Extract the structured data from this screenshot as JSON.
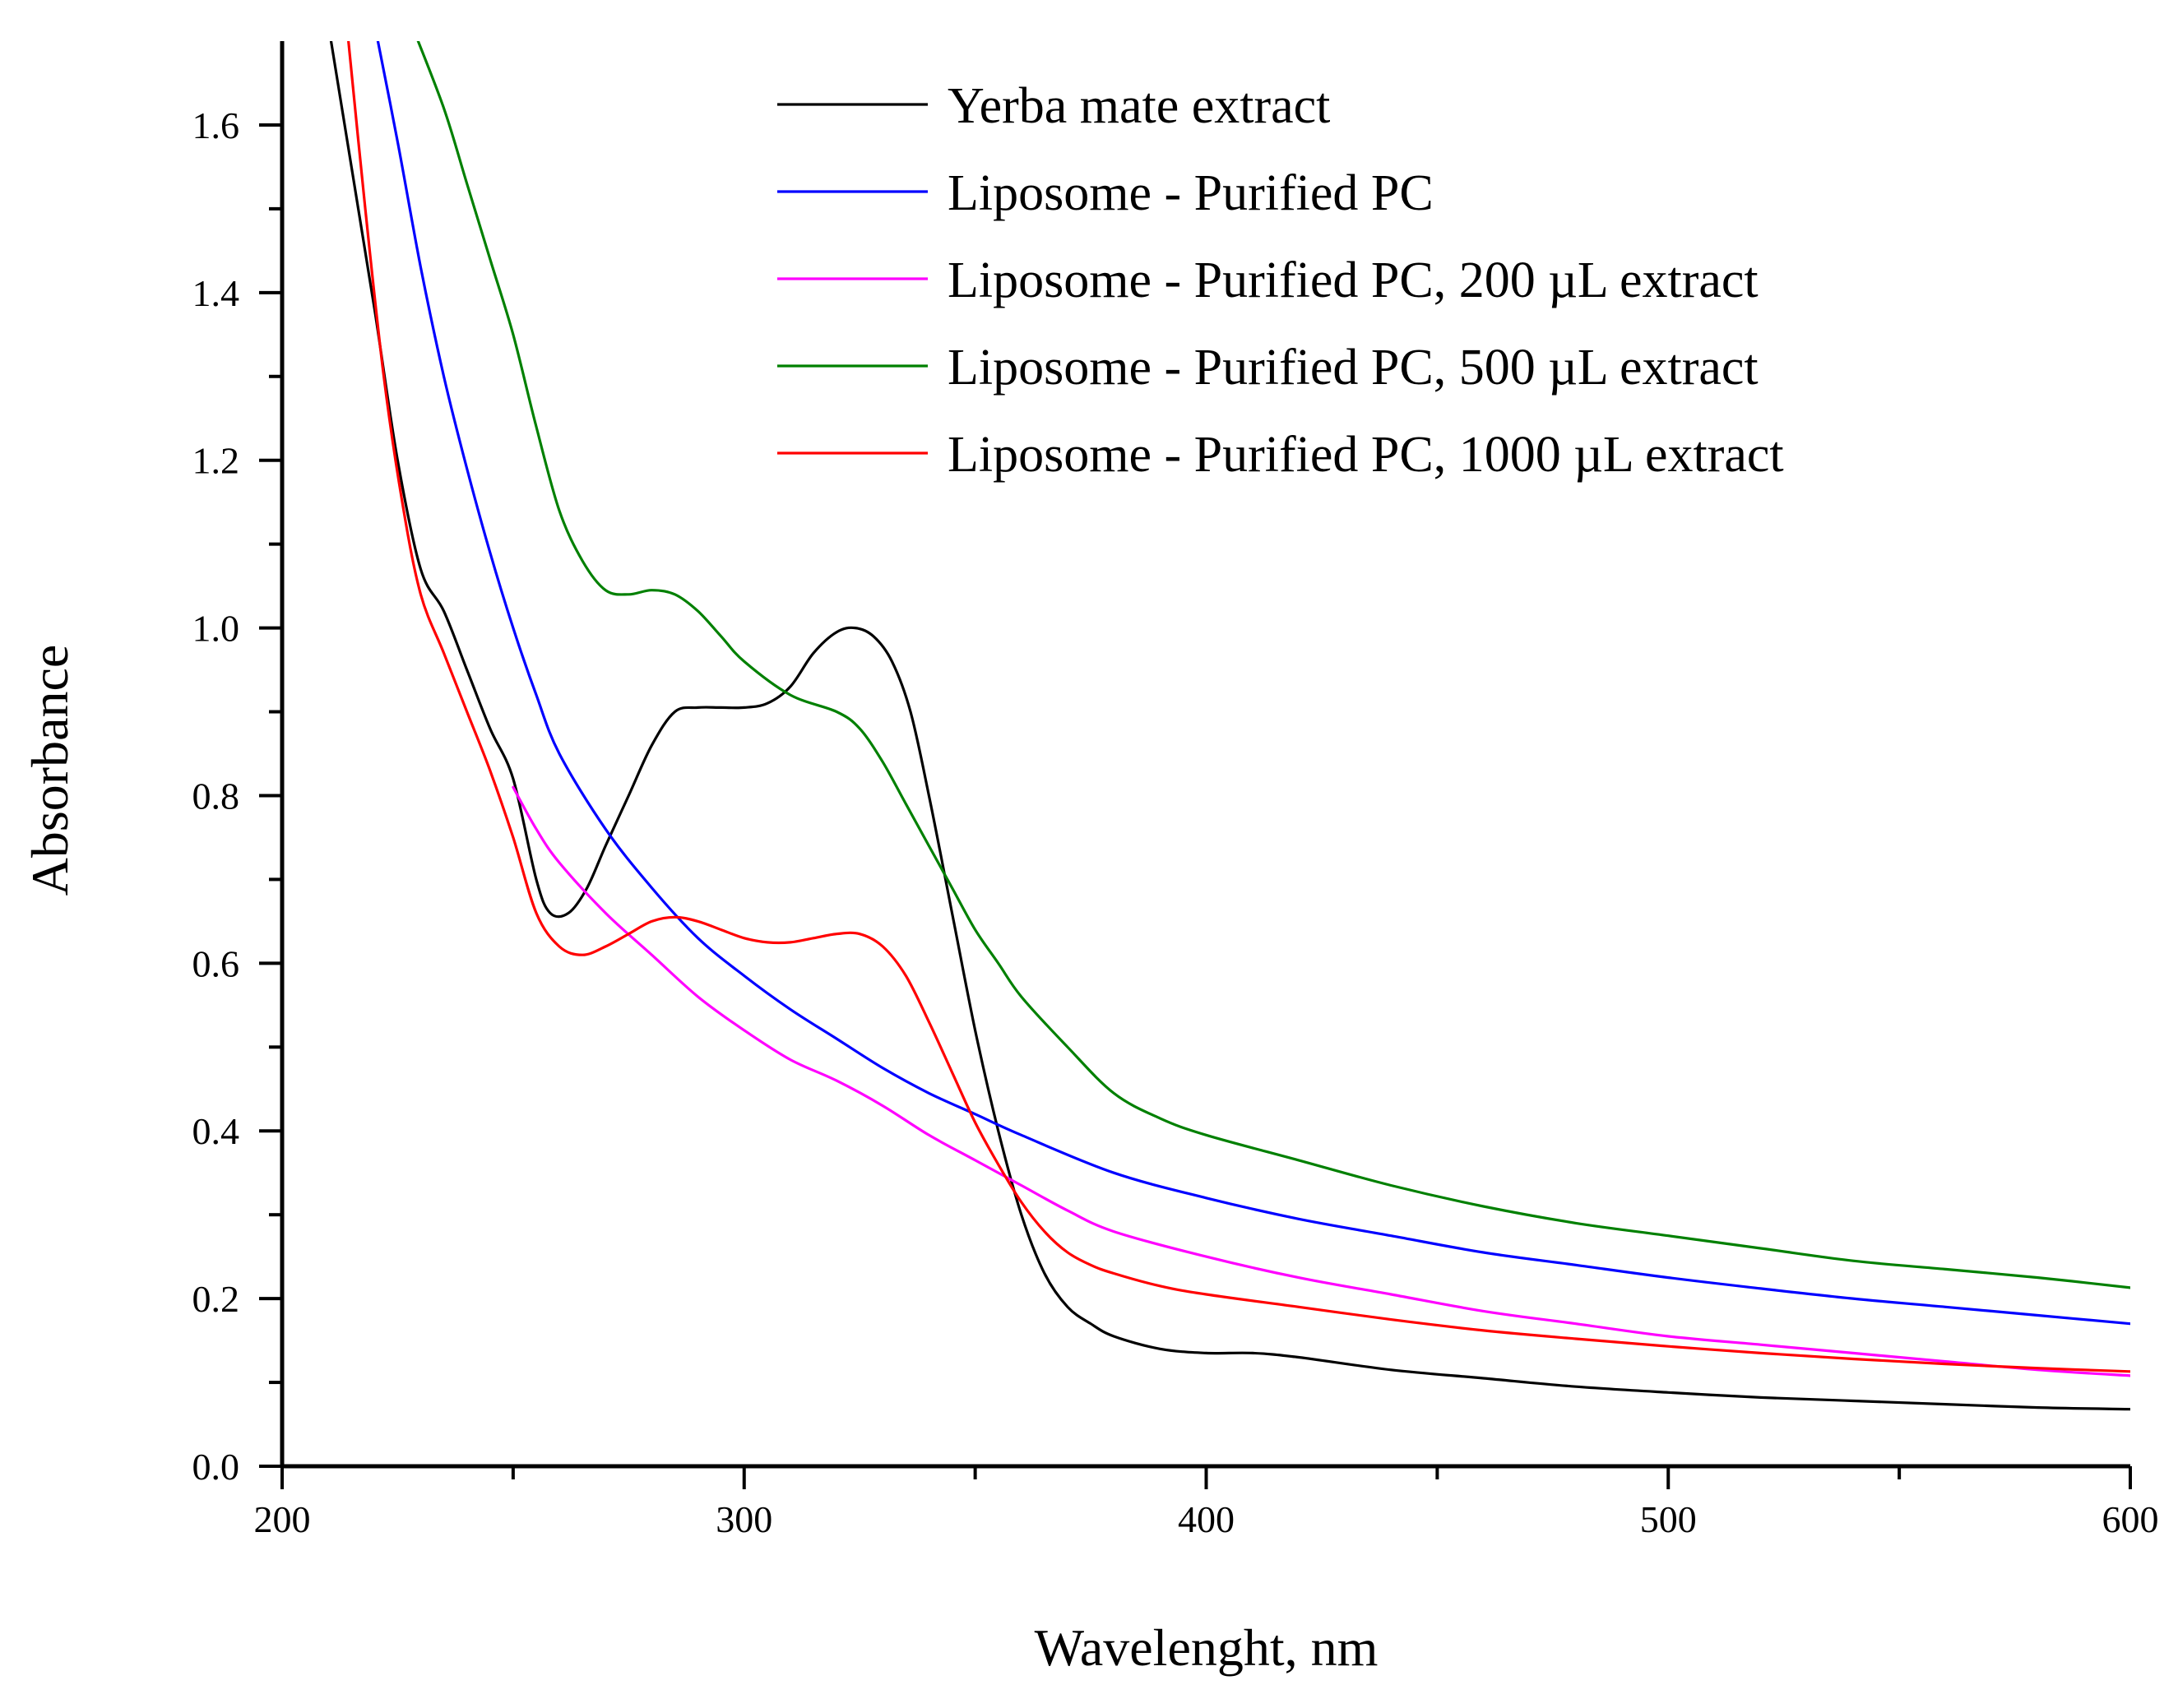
{
  "chart_data": {
    "type": "line",
    "title": "",
    "xlabel": "Wavelenght, nm",
    "ylabel": "Absorbance",
    "xlim": [
      200,
      600
    ],
    "ylim": [
      0,
      1.7
    ],
    "xticks": [
      200,
      300,
      400,
      500,
      600
    ],
    "xtick_labels": [
      "200",
      "300",
      "400",
      "500",
      "600"
    ],
    "yticks": [
      0,
      0.2,
      0.4,
      0.6,
      0.8,
      1.0,
      1.2,
      1.4,
      1.6
    ],
    "ytick_labels": [
      "0.0",
      "0.2",
      "0.4",
      "0.6",
      "0.8",
      "1.0",
      "1.2",
      "1.4",
      "1.6"
    ],
    "grid": false,
    "legend_position": "top-right",
    "series": [
      {
        "name": "Yerba mate extract",
        "color": "#000000",
        "x": [
          210,
          215,
          220,
          225,
          230,
          235,
          240,
          245,
          250,
          255,
          258,
          262,
          266,
          270,
          275,
          280,
          285,
          290,
          295,
          300,
          305,
          310,
          315,
          320,
          324,
          328,
          332,
          336,
          340,
          345,
          350,
          355,
          360,
          365,
          370,
          375,
          380,
          390,
          400,
          410,
          420,
          440,
          460,
          480,
          500,
          520,
          540,
          560,
          580,
          600
        ],
        "y": [
          1.72,
          1.55,
          1.38,
          1.2,
          1.07,
          1.02,
          0.95,
          0.88,
          0.82,
          0.7,
          0.66,
          0.66,
          0.69,
          0.74,
          0.8,
          0.86,
          0.9,
          0.905,
          0.905,
          0.905,
          0.91,
          0.93,
          0.97,
          0.995,
          1.0,
          0.99,
          0.96,
          0.9,
          0.8,
          0.66,
          0.52,
          0.4,
          0.3,
          0.23,
          0.19,
          0.17,
          0.155,
          0.14,
          0.135,
          0.135,
          0.13,
          0.115,
          0.105,
          0.095,
          0.088,
          0.082,
          0.078,
          0.074,
          0.07,
          0.068
        ]
      },
      {
        "name": "Liposome - Purified PC",
        "color": "#0000ff",
        "x": [
          220,
          225,
          230,
          235,
          240,
          245,
          250,
          255,
          260,
          270,
          280,
          290,
          300,
          310,
          320,
          330,
          340,
          350,
          360,
          380,
          400,
          420,
          440,
          460,
          480,
          500,
          520,
          540,
          560,
          580,
          600
        ],
        "y": [
          1.72,
          1.58,
          1.43,
          1.3,
          1.19,
          1.09,
          1.0,
          0.92,
          0.85,
          0.76,
          0.69,
          0.63,
          0.585,
          0.545,
          0.51,
          0.475,
          0.445,
          0.42,
          0.395,
          0.35,
          0.32,
          0.295,
          0.275,
          0.255,
          0.24,
          0.225,
          0.212,
          0.2,
          0.19,
          0.18,
          0.17
        ]
      },
      {
        "name": "Liposome - Purified PC, 200 µL extract",
        "color": "#ff00ff",
        "x": [
          250,
          255,
          260,
          270,
          280,
          290,
          300,
          310,
          320,
          330,
          340,
          350,
          360,
          370,
          380,
          400,
          420,
          440,
          460,
          480,
          500,
          520,
          540,
          560,
          580,
          600
        ],
        "y": [
          0.81,
          0.76,
          0.72,
          0.66,
          0.61,
          0.56,
          0.52,
          0.485,
          0.46,
          0.43,
          0.395,
          0.365,
          0.335,
          0.305,
          0.28,
          0.25,
          0.225,
          0.205,
          0.185,
          0.17,
          0.155,
          0.145,
          0.135,
          0.125,
          0.115,
          0.108
        ]
      },
      {
        "name": "Liposome - Purified PC, 500 µL extract",
        "color": "#008000",
        "x": [
          228,
          235,
          240,
          245,
          250,
          255,
          260,
          265,
          270,
          275,
          280,
          285,
          290,
          295,
          300,
          310,
          320,
          325,
          330,
          335,
          340,
          345,
          350,
          355,
          360,
          370,
          380,
          390,
          400,
          420,
          440,
          460,
          480,
          500,
          520,
          540,
          560,
          580,
          600
        ],
        "y": [
          1.72,
          1.62,
          1.53,
          1.44,
          1.35,
          1.24,
          1.14,
          1.08,
          1.045,
          1.04,
          1.045,
          1.04,
          1.02,
          0.99,
          0.96,
          0.92,
          0.9,
          0.88,
          0.84,
          0.79,
          0.74,
          0.69,
          0.64,
          0.6,
          0.56,
          0.5,
          0.445,
          0.415,
          0.395,
          0.365,
          0.335,
          0.31,
          0.29,
          0.275,
          0.26,
          0.245,
          0.235,
          0.225,
          0.213
        ]
      },
      {
        "name": "Liposome - Purified PC, 1000 µL extract",
        "color": "#ff0000",
        "x": [
          214,
          218,
          222,
          226,
          230,
          235,
          240,
          245,
          250,
          255,
          260,
          265,
          270,
          275,
          280,
          285,
          290,
          295,
          300,
          305,
          310,
          315,
          320,
          325,
          330,
          335,
          340,
          345,
          350,
          355,
          360,
          365,
          370,
          375,
          380,
          390,
          400,
          420,
          440,
          460,
          480,
          500,
          520,
          540,
          560,
          580,
          600
        ],
        "y": [
          1.72,
          1.5,
          1.3,
          1.15,
          1.04,
          0.97,
          0.9,
          0.83,
          0.75,
          0.66,
          0.62,
          0.61,
          0.62,
          0.635,
          0.65,
          0.655,
          0.65,
          0.64,
          0.63,
          0.625,
          0.625,
          0.63,
          0.635,
          0.635,
          0.62,
          0.585,
          0.53,
          0.47,
          0.41,
          0.36,
          0.315,
          0.28,
          0.255,
          0.24,
          0.23,
          0.215,
          0.205,
          0.19,
          0.175,
          0.162,
          0.152,
          0.143,
          0.135,
          0.128,
          0.122,
          0.117,
          0.113
        ]
      }
    ]
  }
}
